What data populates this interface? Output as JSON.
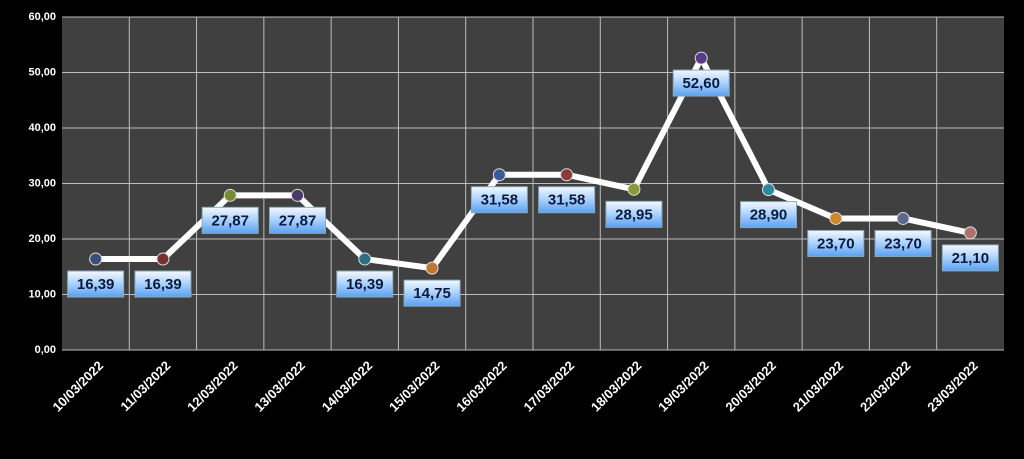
{
  "chart_data": {
    "type": "line",
    "categories": [
      "10/03/2022",
      "11/03/2022",
      "12/03/2022",
      "13/03/2022",
      "14/03/2022",
      "15/03/2022",
      "16/03/2022",
      "17/03/2022",
      "18/03/2022",
      "19/03/2022",
      "20/03/2022",
      "21/03/2022",
      "22/03/2022",
      "23/03/2022"
    ],
    "series": [
      {
        "color": "#ffffff",
        "values": [
          16.39,
          16.39,
          27.87,
          27.87,
          16.39,
          14.75,
          31.58,
          31.58,
          28.95,
          52.6,
          28.9,
          23.7,
          23.7,
          21.1
        ],
        "value_labels": [
          "16,39",
          "16,39",
          "27,87",
          "27,87",
          "16,39",
          "14,75",
          "31,58",
          "31,58",
          "28,95",
          "52,60",
          "28,90",
          "23,70",
          "23,70",
          "21,10"
        ],
        "marker_colors": [
          "#3a4f7a",
          "#7a3030",
          "#7a8a30",
          "#4a3a6a",
          "#2a7080",
          "#c07830",
          "#3a5a9a",
          "#8a3a3a",
          "#8a9a3a",
          "#5a3a8a",
          "#2a8a9a",
          "#d08830",
          "#5a6a8a",
          "#b07070"
        ]
      }
    ],
    "ylim": [
      0,
      60
    ],
    "yticks": [
      {
        "value": 0,
        "label": "0,00"
      },
      {
        "value": 10,
        "label": "10,00"
      },
      {
        "value": 20,
        "label": "20,00"
      },
      {
        "value": 30,
        "label": "30,00"
      },
      {
        "value": 40,
        "label": "40,00"
      },
      {
        "value": 50,
        "label": "50,00"
      },
      {
        "value": 60,
        "label": "60,00"
      }
    ],
    "grid": true
  }
}
